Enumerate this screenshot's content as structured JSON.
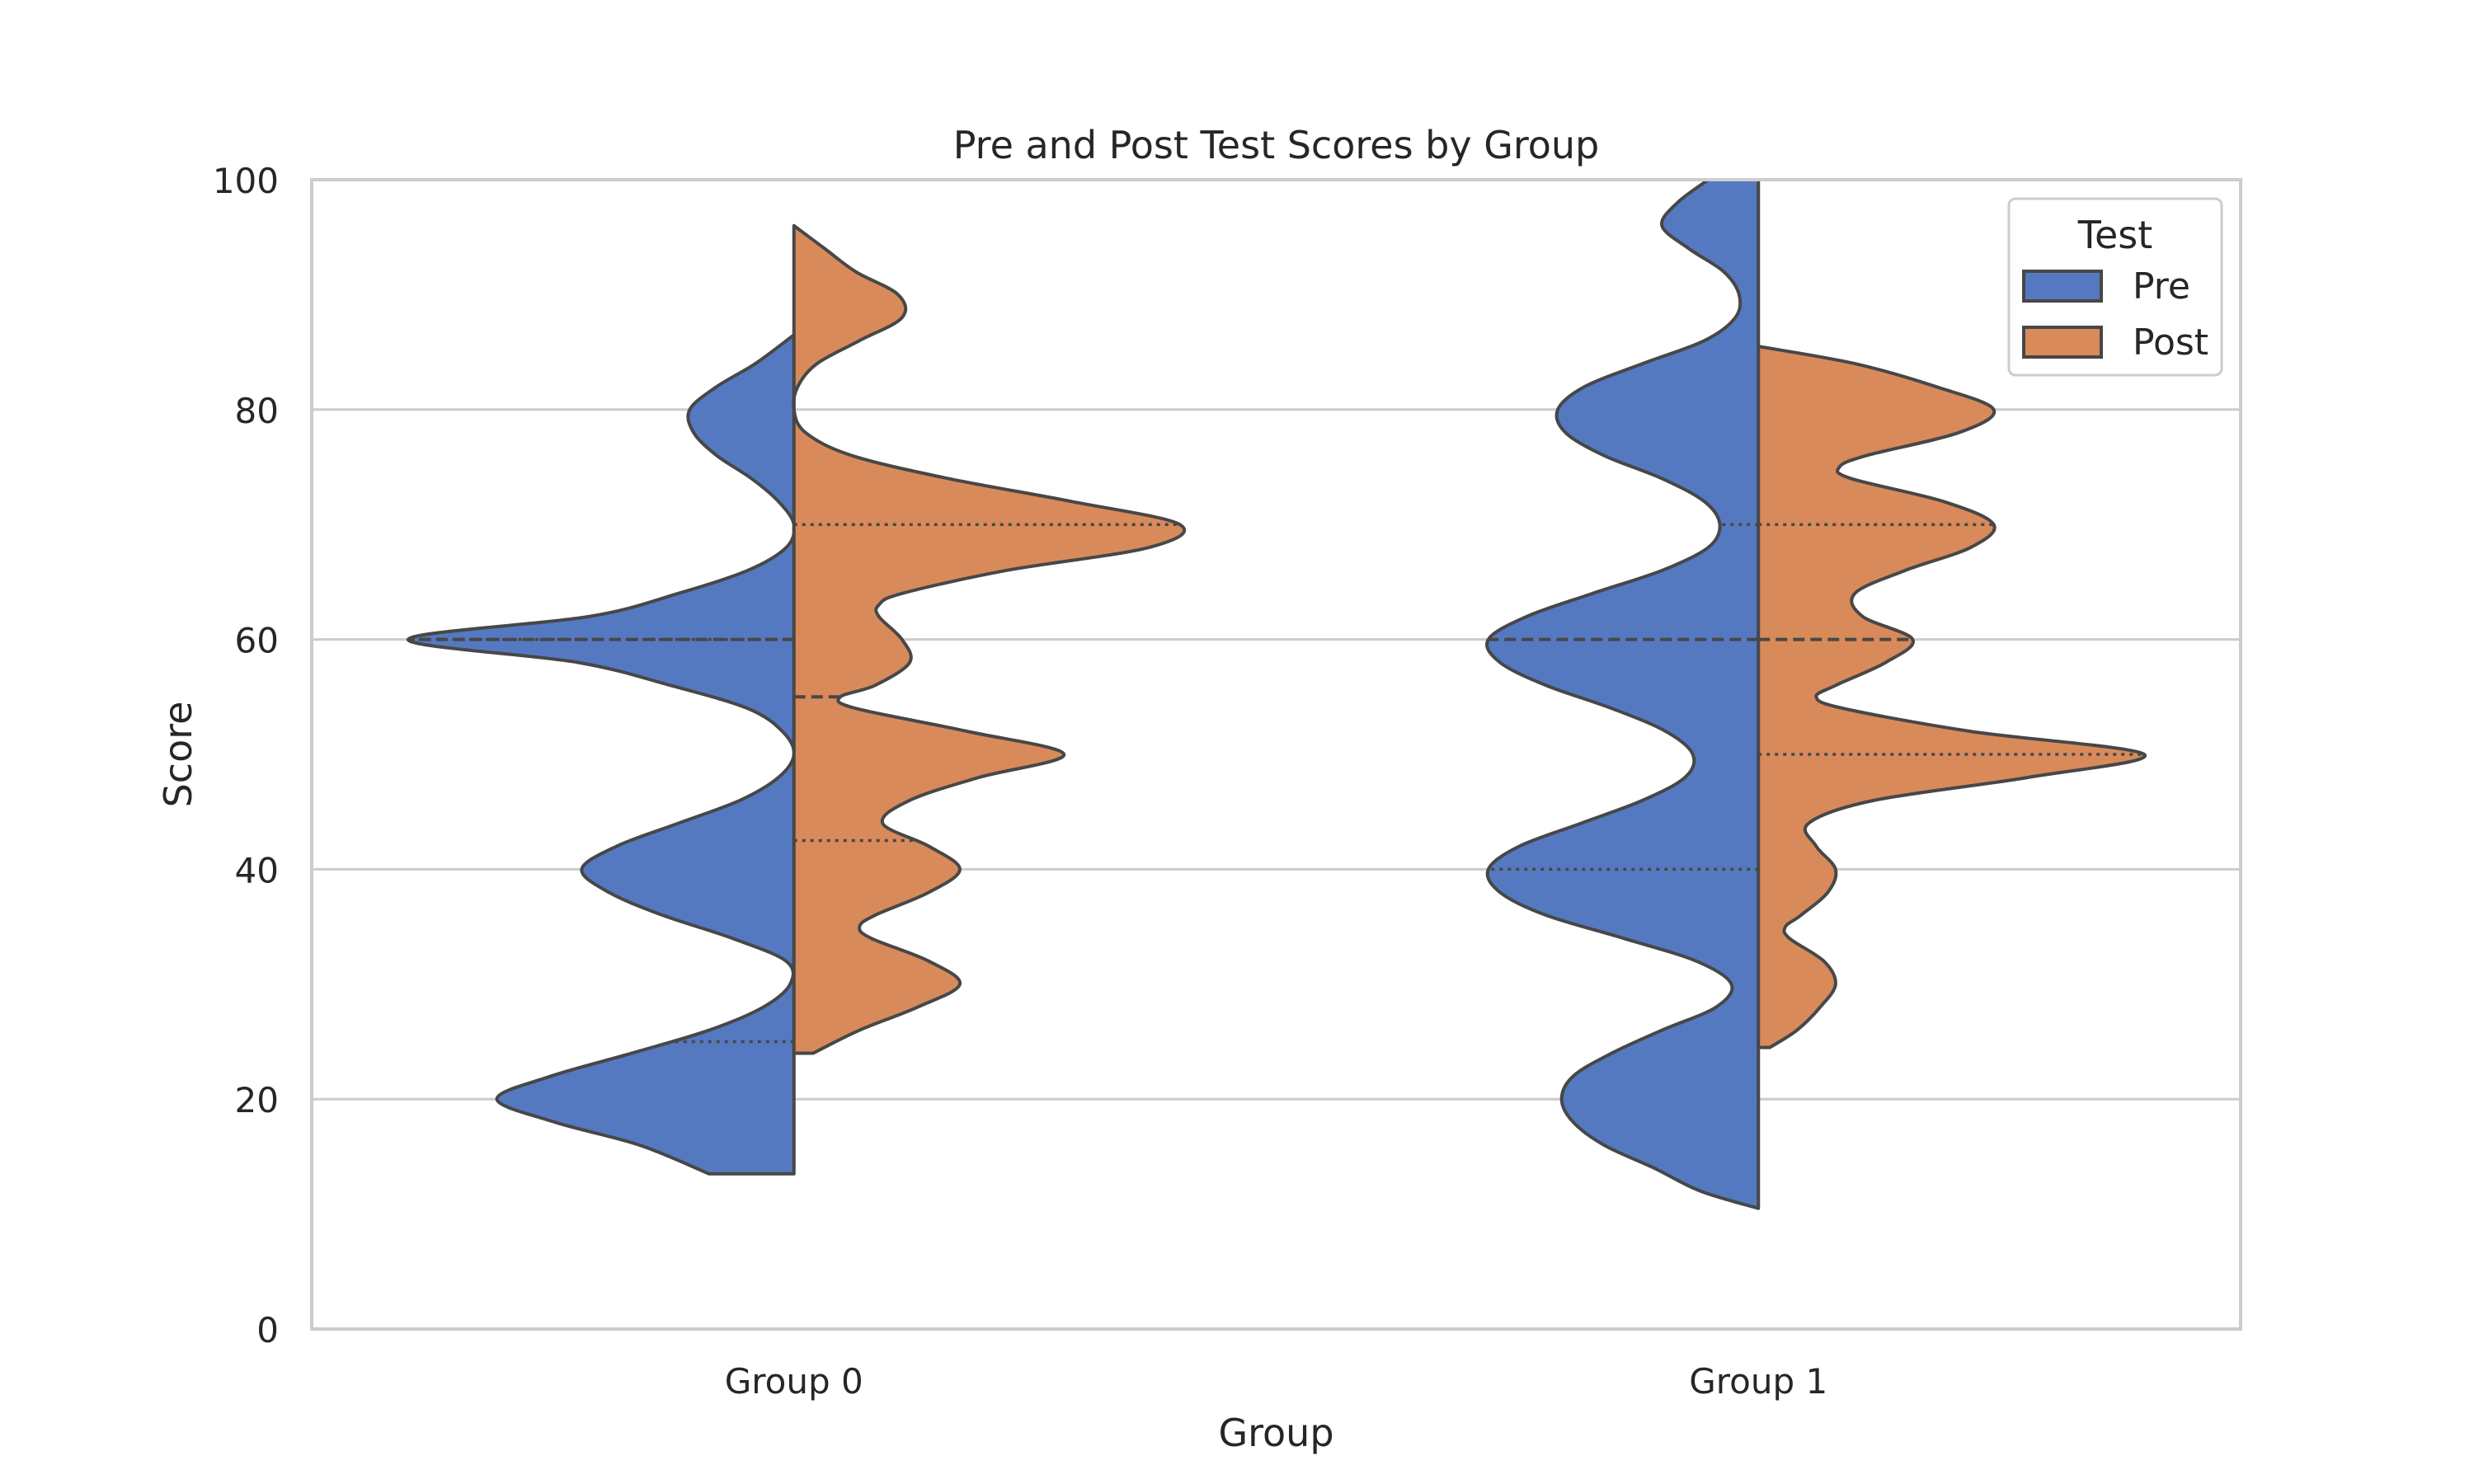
{
  "chart_data": {
    "type": "violin",
    "title": "Pre and Post Test Scores by Group",
    "xlabel": "Group",
    "ylabel": "Score",
    "ylim": [
      0,
      100
    ],
    "yticks": [
      0,
      20,
      40,
      60,
      80,
      100
    ],
    "grid": "y",
    "categories": [
      "Group 0",
      "Group 1"
    ],
    "legend": {
      "title": "Test",
      "placement": "top-right",
      "entries": [
        "Pre",
        "Post"
      ]
    },
    "colors": {
      "Pre": "#5579c1",
      "Post": "#d98a5b",
      "edge": "#474747"
    },
    "split": true,
    "inner": "quartile",
    "series": [
      {
        "name": "Pre",
        "side": "left",
        "violins": [
          {
            "category": "Group 0",
            "range": [
              13.5,
              86.5
            ],
            "quartiles": [
              25,
              60,
              60
            ],
            "density": [
              [
                13.5,
                0.22
              ],
              [
                16,
                0.4
              ],
              [
                18,
                0.62
              ],
              [
                20,
                0.77
              ],
              [
                22,
                0.63
              ],
              [
                24,
                0.42
              ],
              [
                26,
                0.22
              ],
              [
                28,
                0.08
              ],
              [
                30,
                0.01
              ],
              [
                32,
                0.02
              ],
              [
                34,
                0.16
              ],
              [
                36,
                0.34
              ],
              [
                38,
                0.48
              ],
              [
                40,
                0.55
              ],
              [
                42,
                0.46
              ],
              [
                44,
                0.3
              ],
              [
                46,
                0.14
              ],
              [
                48,
                0.04
              ],
              [
                50,
                0.0
              ],
              [
                52,
                0.03
              ],
              [
                54,
                0.12
              ],
              [
                56,
                0.32
              ],
              [
                58,
                0.56
              ],
              [
                60,
                1.0
              ],
              [
                62,
                0.53
              ],
              [
                64,
                0.3
              ],
              [
                66,
                0.12
              ],
              [
                68,
                0.02
              ],
              [
                70,
                0.0
              ],
              [
                72,
                0.04
              ],
              [
                74,
                0.11
              ],
              [
                76,
                0.2
              ],
              [
                78,
                0.26
              ],
              [
                80,
                0.27
              ],
              [
                82,
                0.2
              ],
              [
                84,
                0.1
              ],
              [
                86.5,
                0.0
              ]
            ]
          },
          {
            "category": "Group 1",
            "range": [
              10.5,
              100
            ],
            "quartiles": [
              40,
              60,
              70
            ],
            "density": [
              [
                10.5,
                0.0
              ],
              [
                12,
                0.15
              ],
              [
                14,
                0.27
              ],
              [
                16,
                0.4
              ],
              [
                18,
                0.48
              ],
              [
                20,
                0.51
              ],
              [
                22,
                0.48
              ],
              [
                24,
                0.38
              ],
              [
                26,
                0.25
              ],
              [
                28,
                0.11
              ],
              [
                30,
                0.07
              ],
              [
                32,
                0.16
              ],
              [
                34,
                0.35
              ],
              [
                36,
                0.55
              ],
              [
                38,
                0.67
              ],
              [
                40,
                0.7
              ],
              [
                42,
                0.62
              ],
              [
                44,
                0.46
              ],
              [
                46,
                0.3
              ],
              [
                48,
                0.19
              ],
              [
                50,
                0.17
              ],
              [
                52,
                0.24
              ],
              [
                54,
                0.38
              ],
              [
                56,
                0.55
              ],
              [
                58,
                0.67
              ],
              [
                60,
                0.7
              ],
              [
                62,
                0.6
              ],
              [
                64,
                0.43
              ],
              [
                66,
                0.25
              ],
              [
                68,
                0.13
              ],
              [
                70,
                0.1
              ],
              [
                72,
                0.14
              ],
              [
                74,
                0.25
              ],
              [
                76,
                0.4
              ],
              [
                78,
                0.5
              ],
              [
                80,
                0.52
              ],
              [
                82,
                0.45
              ],
              [
                84,
                0.3
              ],
              [
                86,
                0.14
              ],
              [
                88,
                0.06
              ],
              [
                90,
                0.05
              ],
              [
                92,
                0.09
              ],
              [
                94,
                0.18
              ],
              [
                96,
                0.25
              ],
              [
                98,
                0.21
              ],
              [
                100,
                0.13
              ]
            ]
          }
        ]
      },
      {
        "name": "Post",
        "side": "right",
        "violins": [
          {
            "category": "Group 0",
            "range": [
              24,
              96
            ],
            "quartiles": [
              42.5,
              55,
              70
            ],
            "density": [
              [
                24,
                0.05
              ],
              [
                26,
                0.17
              ],
              [
                28,
                0.32
              ],
              [
                30,
                0.43
              ],
              [
                32,
                0.35
              ],
              [
                34,
                0.2
              ],
              [
                35,
                0.17
              ],
              [
                36,
                0.21
              ],
              [
                38,
                0.35
              ],
              [
                40,
                0.43
              ],
              [
                42,
                0.35
              ],
              [
                44,
                0.23
              ],
              [
                46,
                0.3
              ],
              [
                48,
                0.48
              ],
              [
                50,
                0.7
              ],
              [
                52,
                0.45
              ],
              [
                54,
                0.16
              ],
              [
                55,
                0.12
              ],
              [
                56,
                0.21
              ],
              [
                58,
                0.3
              ],
              [
                60,
                0.28
              ],
              [
                62,
                0.22
              ],
              [
                63,
                0.22
              ],
              [
                64,
                0.28
              ],
              [
                66,
                0.55
              ],
              [
                68,
                0.92
              ],
              [
                70,
                1.0
              ],
              [
                72,
                0.72
              ],
              [
                74,
                0.4
              ],
              [
                76,
                0.15
              ],
              [
                78,
                0.03
              ],
              [
                80,
                0.0
              ],
              [
                82,
                0.01
              ],
              [
                84,
                0.06
              ],
              [
                86,
                0.17
              ],
              [
                88,
                0.28
              ],
              [
                90,
                0.27
              ],
              [
                92,
                0.16
              ],
              [
                94,
                0.08
              ],
              [
                96,
                0.0
              ]
            ]
          },
          {
            "category": "Group 1",
            "range": [
              24.5,
              85.5
            ],
            "quartiles": [
              50,
              60,
              70
            ],
            "density": [
              [
                24.5,
                0.03
              ],
              [
                26,
                0.1
              ],
              [
                28,
                0.16
              ],
              [
                30,
                0.2
              ],
              [
                32,
                0.17
              ],
              [
                34,
                0.08
              ],
              [
                35,
                0.07
              ],
              [
                36,
                0.11
              ],
              [
                38,
                0.18
              ],
              [
                40,
                0.2
              ],
              [
                42,
                0.15
              ],
              [
                44,
                0.13
              ],
              [
                46,
                0.3
              ],
              [
                48,
                0.7
              ],
              [
                50,
                1.0
              ],
              [
                52,
                0.55
              ],
              [
                54,
                0.22
              ],
              [
                55,
                0.15
              ],
              [
                56,
                0.2
              ],
              [
                58,
                0.33
              ],
              [
                60,
                0.4
              ],
              [
                62,
                0.27
              ],
              [
                64,
                0.25
              ],
              [
                66,
                0.38
              ],
              [
                68,
                0.55
              ],
              [
                70,
                0.61
              ],
              [
                72,
                0.48
              ],
              [
                74,
                0.24
              ],
              [
                75,
                0.21
              ],
              [
                76,
                0.28
              ],
              [
                78,
                0.52
              ],
              [
                80,
                0.61
              ],
              [
                82,
                0.46
              ],
              [
                84,
                0.25
              ],
              [
                85.5,
                0.0
              ]
            ]
          }
        ]
      }
    ]
  }
}
